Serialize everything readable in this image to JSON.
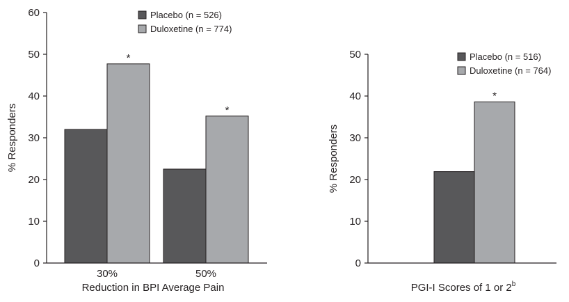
{
  "colors": {
    "placebo": "#58585a",
    "duloxetine": "#a7a9ac",
    "bar_stroke": "#231f20",
    "axis": "#231f20"
  },
  "chart_data": [
    {
      "type": "bar",
      "categories": [
        "30%",
        "50%"
      ],
      "series": [
        {
          "name": "Placebo (n = 526)",
          "values": [
            32,
            22.5
          ],
          "color": "#58585a"
        },
        {
          "name": "Duloxetine (n = 774)",
          "values": [
            47.7,
            35.2
          ],
          "color": "#a7a9ac"
        }
      ],
      "significance": [
        [
          "",
          "*"
        ],
        [
          "",
          "*"
        ]
      ],
      "xlabel": "Reduction in BPI Average Pain",
      "ylabel": "% Responders",
      "ylim": [
        0,
        60
      ],
      "yticks": [
        0,
        10,
        20,
        30,
        40,
        50,
        60
      ],
      "grid": false,
      "legend_position": "top-right"
    },
    {
      "type": "bar",
      "categories": [
        ""
      ],
      "series": [
        {
          "name": "Placebo (n = 516)",
          "values": [
            21.9
          ],
          "color": "#58585a"
        },
        {
          "name": "Duloxetine (n = 764)",
          "values": [
            38.6
          ],
          "color": "#a7a9ac"
        }
      ],
      "significance": [
        [
          "",
          "*"
        ]
      ],
      "xlabel": "PGI-I Scores of 1 or 2",
      "xlabel_superscript": "b",
      "ylabel": "% Responders",
      "ylim": [
        0,
        50
      ],
      "yticks": [
        0,
        10,
        20,
        30,
        40,
        50
      ],
      "grid": false,
      "legend_position": "top-right"
    }
  ]
}
